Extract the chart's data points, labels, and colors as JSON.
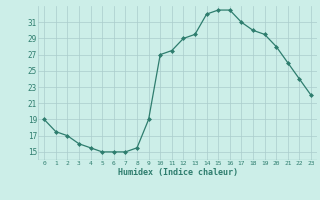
{
  "x": [
    0,
    1,
    2,
    3,
    4,
    5,
    6,
    7,
    8,
    9,
    10,
    11,
    12,
    13,
    14,
    15,
    16,
    17,
    18,
    19,
    20,
    21,
    22,
    23
  ],
  "y": [
    19,
    17.5,
    17,
    16,
    15.5,
    15,
    15,
    15,
    15.5,
    19,
    27,
    27.5,
    29,
    29.5,
    32,
    32.5,
    32.5,
    31,
    30,
    29.5,
    28,
    26,
    24,
    22
  ],
  "xlabel": "Humidex (Indice chaleur)",
  "ylim": [
    14,
    33
  ],
  "xlim": [
    -0.5,
    23.5
  ],
  "yticks": [
    15,
    17,
    19,
    21,
    23,
    25,
    27,
    29,
    31
  ],
  "line_color": "#2e7d6e",
  "marker_color": "#2e7d6e",
  "bg_color": "#cceee8",
  "grid_color": "#aacccc",
  "xlabel_color": "#2e7d6e"
}
